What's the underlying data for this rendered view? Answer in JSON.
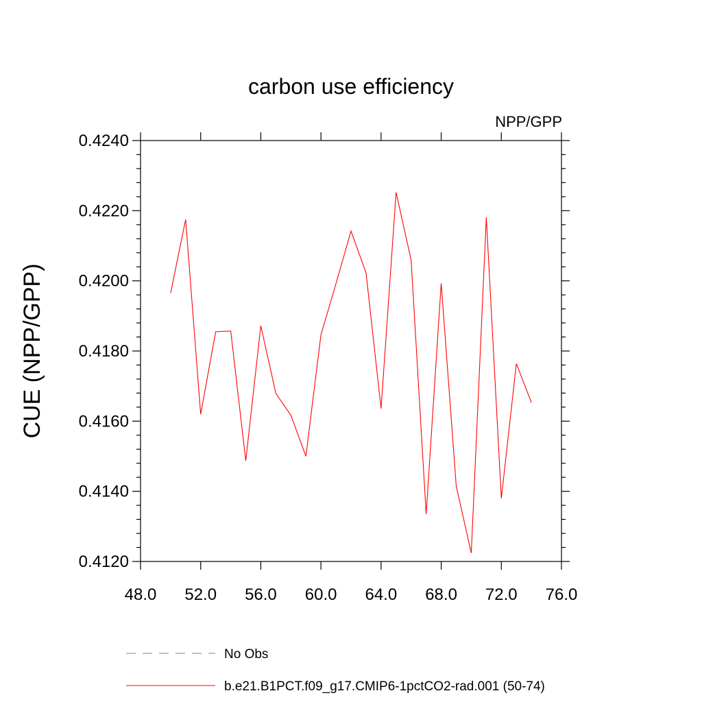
{
  "chart_data": {
    "type": "line",
    "title": "carbon use efficiency",
    "subtitle": "NPP/GPP",
    "xlabel": "",
    "ylabel": "CUE  (NPP/GPP)",
    "xlim": [
      48,
      76
    ],
    "ylim": [
      0.412,
      0.424
    ],
    "x_ticks": [
      48,
      52,
      56,
      60,
      64,
      68,
      72,
      76
    ],
    "x_tick_labels": [
      "48.0",
      "52.0",
      "56.0",
      "60.0",
      "64.0",
      "68.0",
      "72.0",
      "76.0"
    ],
    "y_ticks": [
      0.412,
      0.414,
      0.416,
      0.418,
      0.42,
      0.422,
      0.424
    ],
    "y_tick_labels": [
      "0.4120",
      "0.4140",
      "0.4160",
      "0.4180",
      "0.4200",
      "0.4220",
      "0.4240"
    ],
    "grid": false,
    "legend_position": "bottom",
    "series": [
      {
        "name": "No Obs",
        "color": "#7b7bd0",
        "dashed": true,
        "x": [],
        "values": []
      },
      {
        "name": "b.e21.B1PCT.f09_g17.CMIP6-1pctCO2-rad.001 (50-74)",
        "color": "#ff0000",
        "dashed": false,
        "x": [
          50,
          51,
          52,
          53,
          54,
          55,
          56,
          57,
          58,
          59,
          60,
          61,
          62,
          63,
          64,
          65,
          66,
          67,
          68,
          69,
          70,
          71,
          72,
          73,
          74
        ],
        "values": [
          0.41965,
          0.42175,
          0.4162,
          0.41855,
          0.41857,
          0.41487,
          0.41872,
          0.41679,
          0.41617,
          0.415,
          0.41846,
          0.41992,
          0.42142,
          0.42023,
          0.41636,
          0.42252,
          0.42059,
          0.41335,
          0.41993,
          0.41415,
          0.41224,
          0.42181,
          0.4138,
          0.41764,
          0.41653
        ]
      }
    ]
  }
}
